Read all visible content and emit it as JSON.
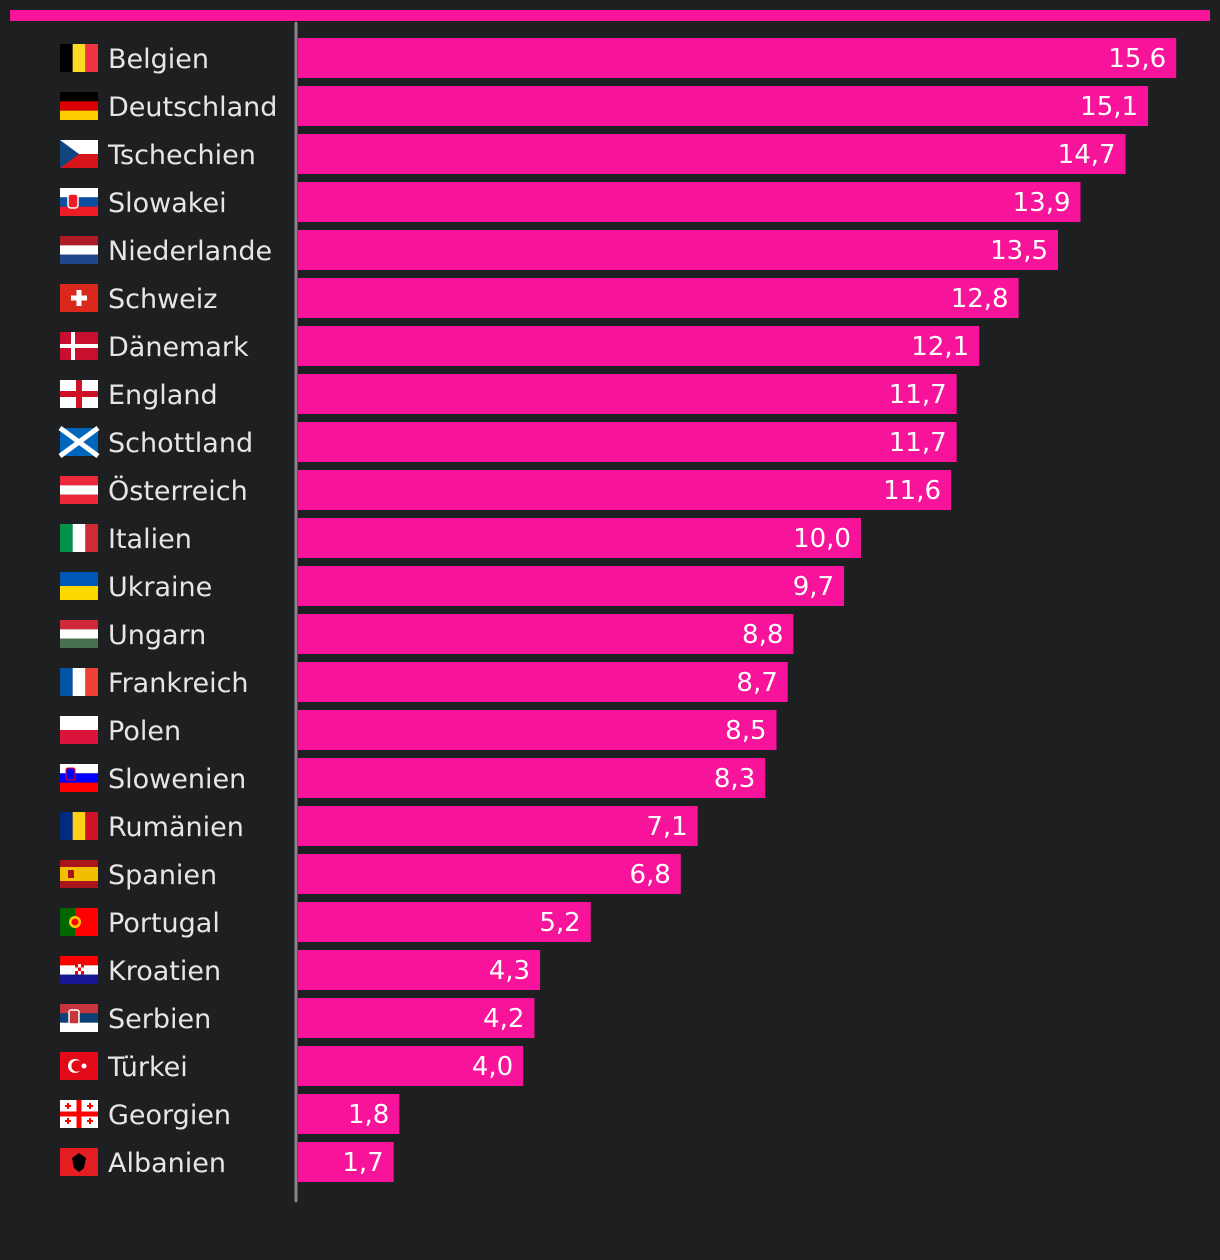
{
  "colors": {
    "background": "#1e1f21",
    "bar": "#f7139a",
    "axis": "#888888",
    "label": "#e6e6e6",
    "value_label": "#ffffff"
  },
  "chart_data": {
    "type": "bar",
    "orientation": "horizontal",
    "categories": [
      "Belgien",
      "Deutschland",
      "Tschechien",
      "Slowakei",
      "Niederlande",
      "Schweiz",
      "Dänemark",
      "England",
      "Schottland",
      "Österreich",
      "Italien",
      "Ukraine",
      "Ungarn",
      "Frankreich",
      "Polen",
      "Slowenien",
      "Rumänien",
      "Spanien",
      "Portugal",
      "Kroatien",
      "Serbien",
      "Türkei",
      "Georgien",
      "Albanien"
    ],
    "values": [
      15.6,
      15.1,
      14.7,
      13.9,
      13.5,
      12.8,
      12.1,
      11.7,
      11.7,
      11.6,
      10.0,
      9.7,
      8.8,
      8.7,
      8.5,
      8.3,
      7.1,
      6.8,
      5.2,
      4.3,
      4.2,
      4.0,
      1.8,
      1.7
    ],
    "value_labels": [
      "15,6",
      "15,1",
      "14,7",
      "13,9",
      "13,5",
      "12,8",
      "12,1",
      "11,7",
      "11,7",
      "11,6",
      "10,0",
      "9,7",
      "8,8",
      "8,7",
      "8,5",
      "8,3",
      "7,1",
      "6,8",
      "5,2",
      "4,3",
      "4,2",
      "4,0",
      "1,8",
      "1,7"
    ],
    "flag_icons": [
      "belgium-flag-icon",
      "germany-flag-icon",
      "czechia-flag-icon",
      "slovakia-flag-icon",
      "netherlands-flag-icon",
      "switzerland-flag-icon",
      "denmark-flag-icon",
      "england-flag-icon",
      "scotland-flag-icon",
      "austria-flag-icon",
      "italy-flag-icon",
      "ukraine-flag-icon",
      "hungary-flag-icon",
      "france-flag-icon",
      "poland-flag-icon",
      "slovenia-flag-icon",
      "romania-flag-icon",
      "spain-flag-icon",
      "portugal-flag-icon",
      "croatia-flag-icon",
      "serbia-flag-icon",
      "turkey-flag-icon",
      "georgia-flag-icon",
      "albania-flag-icon"
    ],
    "xlim": [
      0,
      16.2
    ],
    "grid": false,
    "legend": "none",
    "title": "",
    "xlabel": "",
    "ylabel": ""
  }
}
